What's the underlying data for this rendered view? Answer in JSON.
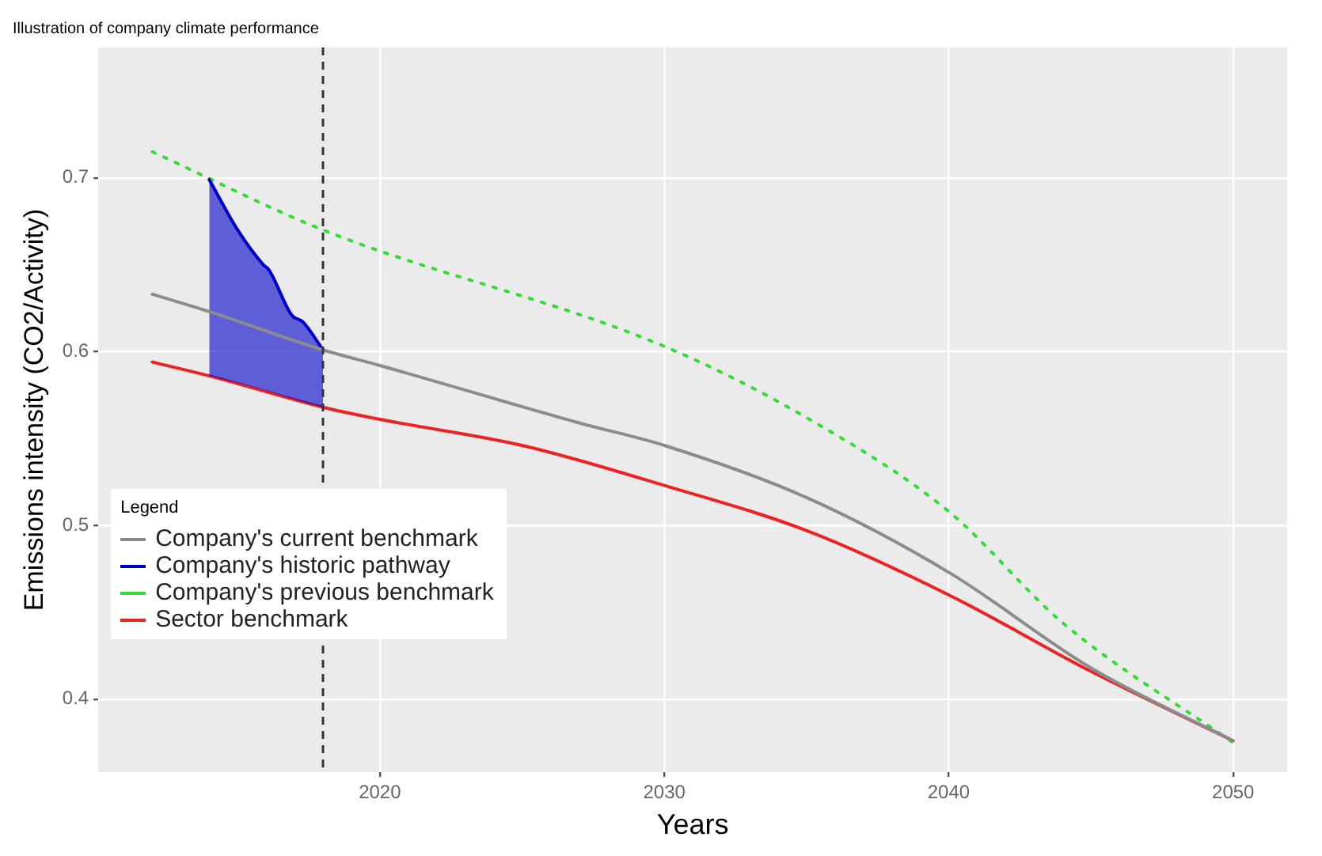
{
  "chart_data": {
    "type": "line",
    "title": "Illustration of company climate performance",
    "xlabel": "Years",
    "ylabel": "Emissions intensity (CO2/Activity)",
    "legend_title": "Legend",
    "xlim": [
      2010.1,
      2051.9
    ],
    "ylim": [
      0.358,
      0.775
    ],
    "xticks": [
      2020,
      2030,
      2040,
      2050
    ],
    "yticks": [
      0.4,
      0.5,
      0.6,
      0.7
    ],
    "grid": true,
    "legend": "bottom left",
    "series": [
      {
        "name": "Company's current benchmark",
        "color": "#8c8c8c",
        "x": [
          2012,
          2014,
          2018,
          2020,
          2027,
          2030,
          2035,
          2040,
          2045,
          2050
        ],
        "values": [
          0.633,
          0.623,
          0.601,
          0.592,
          0.559,
          0.546,
          0.516,
          0.473,
          0.418,
          0.376
        ]
      },
      {
        "name": "Company's historic pathway",
        "color": "#0000cc",
        "x": [
          2014,
          2015,
          2015.9,
          2016.1,
          2016.9,
          2017.3,
          2018
        ],
        "values": [
          0.699,
          0.67,
          0.65,
          0.647,
          0.621,
          0.617,
          0.601
        ],
        "lower": [
          0.586,
          0.582,
          0.578,
          0.577,
          0.573,
          0.571,
          0.568
        ],
        "upper": [
          0.699,
          0.67,
          0.65,
          0.647,
          0.621,
          0.617,
          0.601
        ]
      },
      {
        "name": "Company's previous benchmark",
        "color": "#33dd33",
        "line_style": "dotted",
        "x": [
          2012,
          2018,
          2030,
          2035,
          2040,
          2044,
          2050
        ],
        "values": [
          0.715,
          0.67,
          0.603,
          0.562,
          0.508,
          0.444,
          0.375
        ]
      },
      {
        "name": "Sector benchmark",
        "color": "#ee2222",
        "x": [
          2012,
          2014,
          2018,
          2020,
          2025,
          2030,
          2035,
          2040,
          2045,
          2050
        ],
        "values": [
          0.594,
          0.586,
          0.568,
          0.561,
          0.546,
          0.523,
          0.497,
          0.46,
          0.416,
          0.376
        ]
      }
    ],
    "ref_lines": [
      {
        "axis": "x",
        "value": 2018,
        "color": "#333333",
        "line_style": "dashed"
      }
    ]
  }
}
